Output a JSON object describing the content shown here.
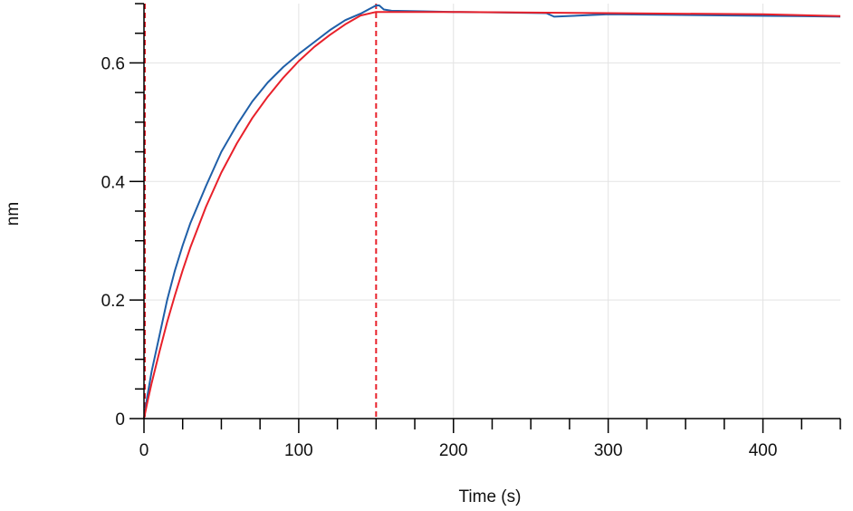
{
  "chart_data": {
    "type": "line",
    "title": "",
    "xlabel": "Time (s)",
    "ylabel": "nm",
    "xlim": [
      0,
      450
    ],
    "ylim": [
      0,
      0.7
    ],
    "x_ticks": [
      0,
      100,
      200,
      300,
      400
    ],
    "x_tick_labels": [
      "0",
      "100",
      "200",
      "300",
      "400"
    ],
    "y_ticks": [
      0,
      0.2,
      0.4,
      0.6
    ],
    "y_tick_labels": [
      "0",
      "0.2",
      "0.4",
      "0.6"
    ],
    "grid": true,
    "legend": "none",
    "vertical_markers": [
      0,
      150
    ],
    "series": [
      {
        "color": "#1f5fa8",
        "x": [
          0,
          2,
          5,
          10,
          15,
          20,
          25,
          30,
          40,
          50,
          60,
          70,
          80,
          90,
          100,
          110,
          120,
          130,
          140,
          145,
          150,
          152,
          155,
          160,
          180,
          200,
          230,
          260,
          265,
          300,
          340,
          380,
          420,
          450
        ],
        "y": [
          0.0,
          0.035,
          0.08,
          0.14,
          0.2,
          0.25,
          0.292,
          0.33,
          0.392,
          0.45,
          0.495,
          0.535,
          0.567,
          0.593,
          0.615,
          0.635,
          0.655,
          0.672,
          0.683,
          0.69,
          0.697,
          0.697,
          0.69,
          0.688,
          0.687,
          0.686,
          0.685,
          0.684,
          0.678,
          0.682,
          0.681,
          0.68,
          0.679,
          0.678
        ]
      },
      {
        "color": "#e8202a",
        "x": [
          0,
          2,
          5,
          10,
          15,
          20,
          25,
          30,
          40,
          50,
          60,
          70,
          80,
          90,
          100,
          110,
          120,
          130,
          140,
          150,
          200,
          300,
          400,
          450
        ],
        "y": [
          0.0,
          0.025,
          0.06,
          0.113,
          0.163,
          0.208,
          0.25,
          0.289,
          0.357,
          0.415,
          0.464,
          0.507,
          0.543,
          0.575,
          0.603,
          0.627,
          0.647,
          0.665,
          0.68,
          0.686,
          0.686,
          0.684,
          0.682,
          0.679
        ]
      }
    ]
  }
}
